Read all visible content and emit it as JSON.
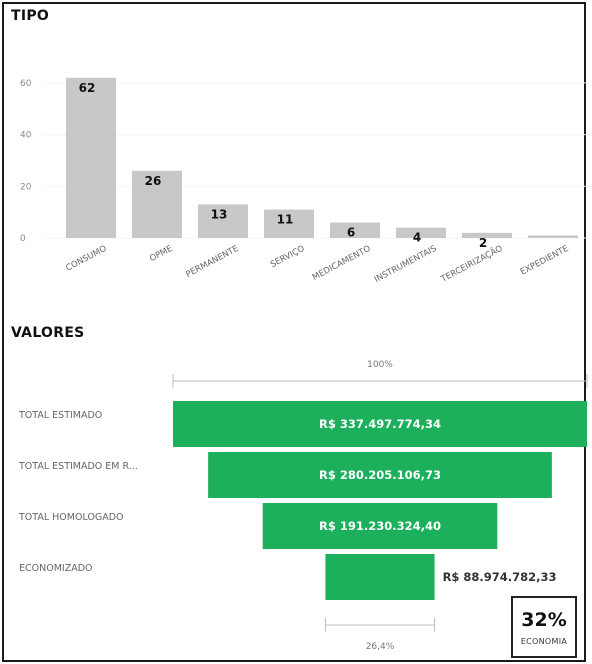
{
  "bar_section": {
    "title": "TIPO"
  },
  "funnel_section": {
    "title": "VALORES"
  },
  "kpi": {
    "value": "32%",
    "label": "ECONOMIA"
  },
  "chart_data": [
    {
      "type": "bar",
      "title": "TIPO",
      "categories": [
        "CONSUMO",
        "OPME",
        "PERMANENTE",
        "SERVIÇO",
        "MEDICAMENTO",
        "INSTRUMENTAIS",
        "TERCEIRIZAÇÃO",
        "EXPEDIENTE"
      ],
      "values": [
        62,
        26,
        13,
        11,
        6,
        4,
        2,
        1
      ],
      "data_labels": [
        "62",
        "26",
        "13",
        "11",
        "6",
        "4",
        "2",
        ""
      ],
      "y_ticks": [
        0,
        20,
        40,
        60
      ],
      "ylim": [
        0,
        65
      ],
      "grid": true,
      "bar_color": "#c8c8c8"
    },
    {
      "type": "bar",
      "subtype": "funnel",
      "title": "VALORES",
      "categories": [
        "TOTAL ESTIMADO",
        "TOTAL ESTIMADO EM R...",
        "TOTAL HOMOLOGADO",
        "ECONOMIZADO"
      ],
      "values": [
        337497774.34,
        280205106.73,
        191230324.4,
        88974782.33
      ],
      "value_labels": [
        "R$ 337.497.774,34",
        "R$ 280.205.106,73",
        "R$ 191.230.324,40",
        "R$ 88.974.782,33"
      ],
      "top_percent_label": "100%",
      "bottom_percent_label": "26,4%",
      "bar_color": "#1db05c"
    }
  ]
}
